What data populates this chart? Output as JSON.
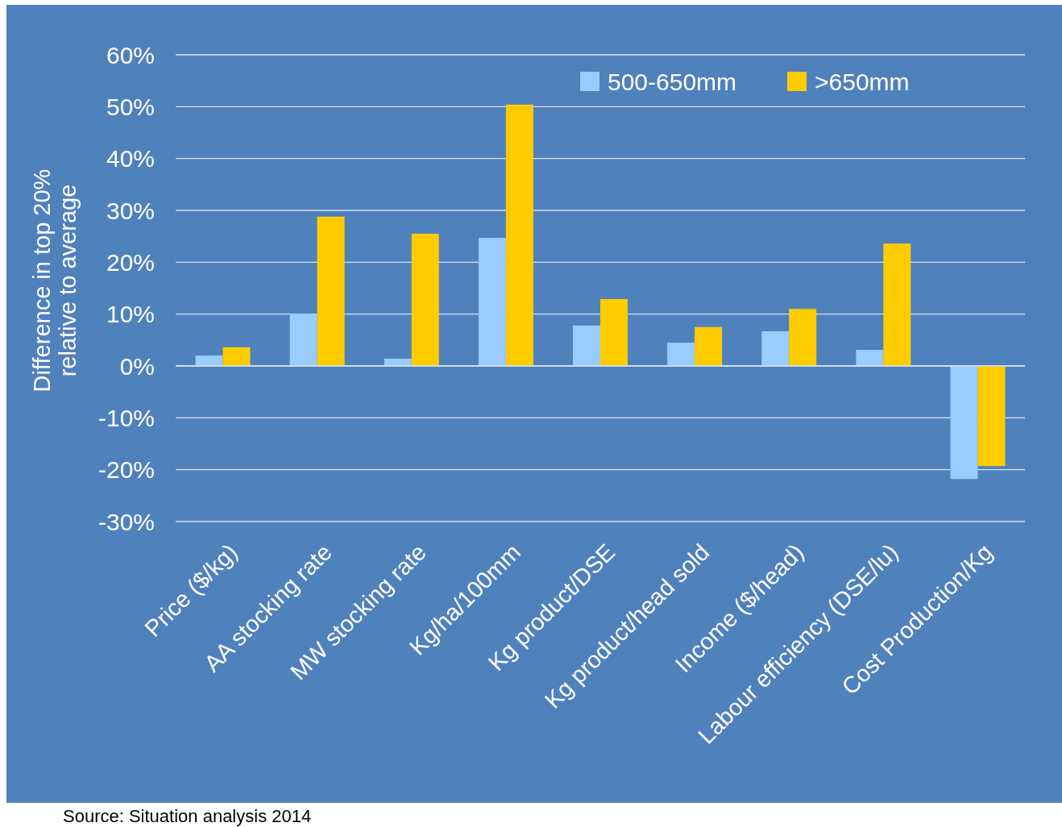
{
  "chart_data": {
    "type": "bar",
    "ylabel": "Difference in top 20%\nrelative to average",
    "categories": [
      "Price ($/kg)",
      "AA stocking rate",
      "MW stocking rate",
      "Kg/ha/100mm",
      "Kg product/DSE",
      "Kg product/head sold",
      "Income ($/head)",
      "Labour efficiency (DSE/lu)",
      "Cost Production/Kg"
    ],
    "series": [
      {
        "name": "500-650mm",
        "color": "#99ccff",
        "values": [
          2.0,
          10.1,
          1.4,
          24.7,
          7.8,
          4.5,
          6.7,
          3.1,
          -21.8
        ]
      },
      {
        "name": ">650mm",
        "color": "#ffcc00",
        "values": [
          3.6,
          28.8,
          25.5,
          50.4,
          12.9,
          7.5,
          11.0,
          23.6,
          -19.3
        ]
      }
    ],
    "ylim": [
      -30,
      60
    ],
    "yticks": [
      {
        "value": -30,
        "label": "-30%"
      },
      {
        "value": -20,
        "label": "-20%"
      },
      {
        "value": -10,
        "label": "-10%"
      },
      {
        "value": 0,
        "label": "0%"
      },
      {
        "value": 10,
        "label": "10%"
      },
      {
        "value": 20,
        "label": "20%"
      },
      {
        "value": 30,
        "label": "30%"
      },
      {
        "value": 40,
        "label": "40%"
      },
      {
        "value": 50,
        "label": "50%"
      },
      {
        "value": 60,
        "label": "60%"
      }
    ],
    "grid": "y",
    "legend": "top right",
    "annotations": [
      "Source: Situation analysis 2014"
    ]
  }
}
